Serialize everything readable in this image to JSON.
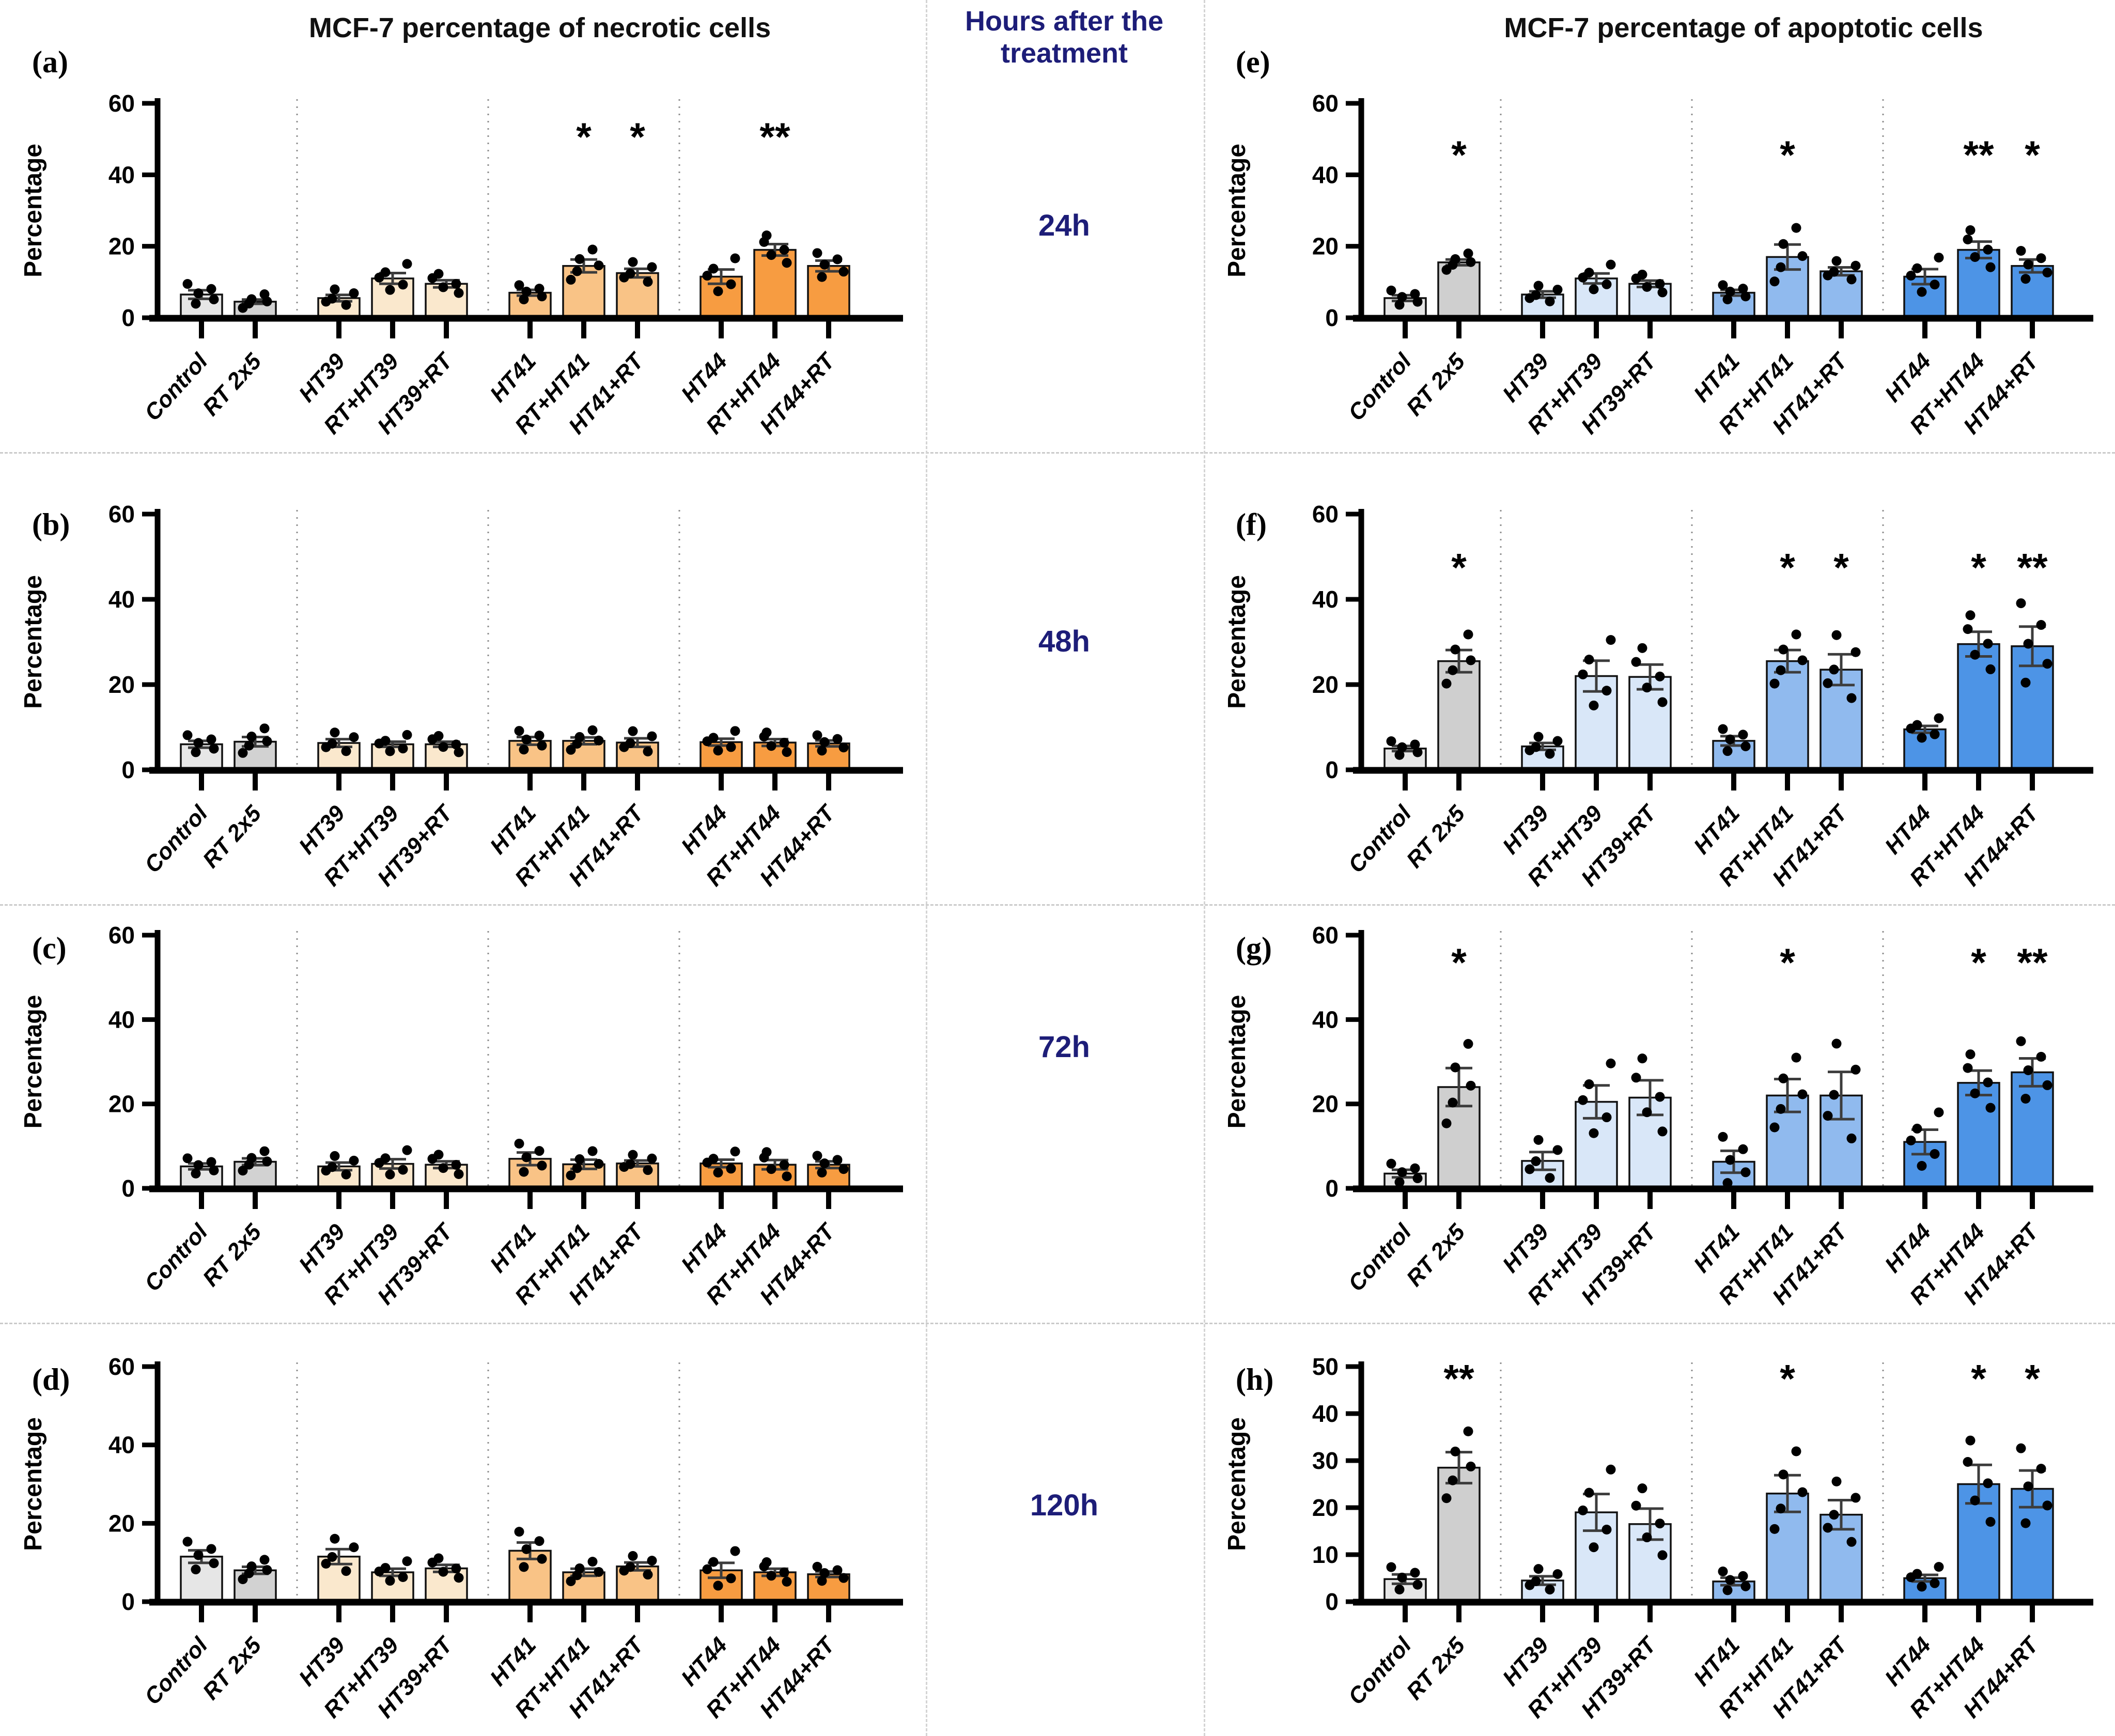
{
  "figure": {
    "left_title": "MCF-7 percentage of necrotic cells",
    "right_title": "MCF-7 percentage of apoptotic cells",
    "middle": {
      "title_line1": "Hours after the",
      "title_line2": "treatment",
      "times": [
        "24h",
        "48h",
        "72h",
        "120h"
      ],
      "text_color": "#1d1d78"
    },
    "accent_colors": {
      "control_gray": "#E6E6E6",
      "rt_gray": "#D2D2D2",
      "ht39_orange": "#FAE8CD",
      "ht41_orange": "#F9C386",
      "ht44_orange": "#F79C41",
      "ht39_blue": "#D9E7F8",
      "ht41_blue": "#90BAEE",
      "ht44_blue": "#4D94E6"
    }
  },
  "categories": [
    "Control",
    "RT 2x5",
    "HT39",
    "RT+HT39",
    "HT39+RT",
    "HT41",
    "RT+HT41",
    "HT41+RT",
    "HT44",
    "RT+HT44",
    "HT44+RT"
  ],
  "bar_colors": {
    "necrotic": [
      "#E6E6E6",
      "#D2D2D2",
      "#FAE8CD",
      "#FAE8CD",
      "#FAE8CD",
      "#F9C386",
      "#F9C386",
      "#F9C386",
      "#F79C41",
      "#F79C41",
      "#F79C41"
    ],
    "apoptotic": [
      "#E6E6E6",
      "#CFCFCF",
      "#D9E7F8",
      "#D9E7F8",
      "#D9E7F8",
      "#90BAEE",
      "#90BAEE",
      "#90BAEE",
      "#4D94E6",
      "#4D94E6",
      "#4D94E6"
    ]
  },
  "chart_data": [
    {
      "id": "a",
      "type": "bar",
      "row": 0,
      "side": "left",
      "letter": "(a)",
      "title": "MCF-7 percentage of necrotic cells",
      "ylabel": "Percentage",
      "ylim": [
        0,
        60
      ],
      "yticks": [
        0,
        20,
        40,
        60
      ],
      "palette": "necrotic",
      "values": [
        6.5,
        4.5,
        5.5,
        11,
        9.5,
        7,
        14.5,
        12.5,
        11.5,
        19,
        14.5
      ],
      "errors": [
        1.2,
        0.6,
        0.9,
        1.5,
        1.0,
        0.8,
        1.8,
        1.2,
        2.0,
        1.6,
        1.5
      ],
      "sig": [
        {
          "index": 6,
          "label": "*"
        },
        {
          "index": 7,
          "label": "*"
        },
        {
          "index": 9,
          "label": "**"
        }
      ],
      "sig_y": 50
    },
    {
      "id": "b",
      "type": "bar",
      "row": 1,
      "side": "left",
      "letter": "(b)",
      "title": "",
      "ylabel": "Percentage",
      "ylim": [
        0,
        60
      ],
      "yticks": [
        0,
        20,
        40,
        60
      ],
      "palette": "necrotic",
      "values": [
        6.0,
        6.6,
        6.3,
        6.0,
        6.0,
        6.8,
        6.8,
        6.4,
        6.5,
        6.4,
        6.2
      ],
      "errors": [
        0.8,
        1.1,
        0.9,
        0.6,
        0.6,
        0.9,
        0.8,
        1.0,
        0.8,
        0.8,
        0.7
      ],
      "sig": [],
      "sig_y": 50
    },
    {
      "id": "c",
      "type": "bar",
      "row": 2,
      "side": "left",
      "letter": "(c)",
      "title": "",
      "ylabel": "Percentage",
      "ylim": [
        0,
        60
      ],
      "yticks": [
        0,
        20,
        40,
        60
      ],
      "palette": "necrotic",
      "values": [
        5.2,
        6.3,
        5.2,
        5.8,
        5.6,
        7.0,
        5.7,
        5.9,
        5.9,
        5.6,
        5.6
      ],
      "errors": [
        0.7,
        0.8,
        0.9,
        1.1,
        0.8,
        1.5,
        1.1,
        0.7,
        0.9,
        1.1,
        0.8
      ],
      "sig": [],
      "sig_y": 50
    },
    {
      "id": "d",
      "type": "bar",
      "row": 3,
      "side": "left",
      "letter": "(d)",
      "title": "",
      "ylabel": "Percentage",
      "ylim": [
        0,
        60
      ],
      "yticks": [
        0,
        20,
        40,
        60
      ],
      "palette": "necrotic",
      "values": [
        11.5,
        8.0,
        11.5,
        7.5,
        8.5,
        13.0,
        7.5,
        9.0,
        8.0,
        7.5,
        7.0
      ],
      "errors": [
        1.6,
        0.9,
        1.9,
        0.9,
        0.9,
        2.1,
        0.9,
        1.0,
        1.9,
        0.9,
        0.7
      ],
      "sig": [],
      "sig_y": 50
    },
    {
      "id": "e",
      "type": "bar",
      "row": 0,
      "side": "right",
      "letter": "(e)",
      "title": "MCF-7 percentage of apoptotic cells",
      "ylabel": "Percentage",
      "ylim": [
        0,
        60
      ],
      "yticks": [
        0,
        20,
        40,
        60
      ],
      "palette": "apoptotic",
      "values": [
        5.5,
        15.5,
        6.5,
        11,
        9.5,
        7,
        17,
        13,
        11.5,
        19,
        14.5
      ],
      "errors": [
        0.8,
        0.8,
        0.9,
        1.4,
        0.9,
        0.8,
        3.5,
        1.1,
        2.1,
        2.3,
        1.8
      ],
      "sig": [
        {
          "index": 1,
          "label": "*"
        },
        {
          "index": 6,
          "label": "*"
        },
        {
          "index": 9,
          "label": "**"
        },
        {
          "index": 10,
          "label": "*"
        }
      ],
      "sig_y": 45
    },
    {
      "id": "f",
      "type": "bar",
      "row": 1,
      "side": "right",
      "letter": "(f)",
      "title": "",
      "ylabel": "Percentage",
      "ylim": [
        0,
        60
      ],
      "yticks": [
        0,
        20,
        40,
        60
      ],
      "palette": "apoptotic",
      "values": [
        5.0,
        25.5,
        5.5,
        22.0,
        21.8,
        6.8,
        25.5,
        23.5,
        9.5,
        29.5,
        29.0
      ],
      "errors": [
        0.6,
        2.6,
        0.8,
        3.6,
        2.9,
        1.1,
        2.6,
        3.6,
        0.8,
        2.9,
        4.6
      ],
      "sig": [
        {
          "index": 1,
          "label": "*"
        },
        {
          "index": 6,
          "label": "*"
        },
        {
          "index": 7,
          "label": "*"
        },
        {
          "index": 9,
          "label": "*"
        },
        {
          "index": 10,
          "label": "**"
        }
      ],
      "sig_y": 47
    },
    {
      "id": "g",
      "type": "bar",
      "row": 2,
      "side": "right",
      "letter": "(g)",
      "title": "",
      "ylabel": "Percentage",
      "ylim": [
        0,
        60
      ],
      "yticks": [
        0,
        20,
        40,
        60
      ],
      "palette": "apoptotic",
      "values": [
        3.5,
        24.0,
        6.5,
        20.5,
        21.5,
        6.3,
        22.0,
        22.0,
        11.0,
        25.0,
        27.5
      ],
      "errors": [
        0.9,
        4.5,
        2.1,
        3.9,
        4.1,
        2.6,
        3.9,
        5.6,
        2.9,
        2.9,
        3.3
      ],
      "sig": [
        {
          "index": 1,
          "label": "*"
        },
        {
          "index": 6,
          "label": "*"
        },
        {
          "index": 9,
          "label": "*"
        },
        {
          "index": 10,
          "label": "**"
        }
      ],
      "sig_y": 53
    },
    {
      "id": "h",
      "type": "bar",
      "row": 3,
      "side": "right",
      "letter": "(h)",
      "title": "",
      "ylabel": "Percentage",
      "ylim": [
        0,
        50
      ],
      "yticks": [
        0,
        10,
        20,
        30,
        40,
        50
      ],
      "palette": "apoptotic",
      "values": [
        4.8,
        28.5,
        4.5,
        19.0,
        16.5,
        4.3,
        23.0,
        18.5,
        5.0,
        25.0,
        24.0
      ],
      "errors": [
        1.0,
        3.3,
        0.9,
        3.9,
        3.3,
        0.8,
        3.9,
        3.1,
        0.7,
        4.1,
        3.9
      ],
      "sig": [
        {
          "index": 1,
          "label": "**"
        },
        {
          "index": 6,
          "label": "*"
        },
        {
          "index": 9,
          "label": "*"
        },
        {
          "index": 10,
          "label": "*"
        }
      ],
      "sig_y": 47
    }
  ]
}
